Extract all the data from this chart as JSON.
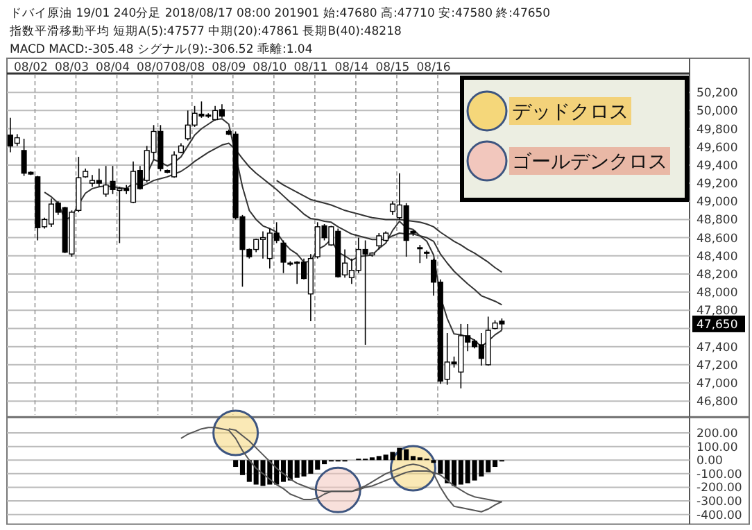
{
  "chart_data": [
    {
      "type": "candlestick",
      "title": "ドバイ原油 19/01 240分足 2018/08/17 08:00 201901 始:47680 高:47710 安:47580 終:47650",
      "subtitle": "指数平滑移動平均 短期A(5):47577 中期(20):47861 長期B(40):48218",
      "categories": [
        null,
        null,
        null,
        "08/02",
        null,
        null,
        null,
        null,
        null,
        "08/03",
        null,
        null,
        null,
        null,
        null,
        "08/04",
        null,
        null,
        null,
        null,
        null,
        "08/07",
        null,
        null,
        null,
        null,
        "08/08",
        null,
        null,
        null,
        null,
        null,
        "08/09",
        null,
        null,
        null,
        null,
        null,
        "08/10",
        null,
        null,
        null,
        null,
        null,
        "08/11",
        null,
        null,
        null,
        null,
        null,
        "08/14",
        null,
        null,
        null,
        null,
        null,
        "08/15",
        null,
        null,
        null,
        null,
        null,
        "08/16",
        null,
        null,
        null,
        null,
        null,
        null,
        null,
        null,
        null,
        null,
        null,
        null,
        null,
        null,
        null,
        null,
        null,
        null,
        null,
        null,
        null,
        null,
        null,
        null,
        null,
        null,
        null,
        null,
        null,
        null,
        null,
        null,
        null,
        null,
        null,
        null,
        null
      ],
      "ohlc": [
        [
          49730,
          49920,
          49540,
          49610
        ],
        [
          49640,
          49740,
          49610,
          49700
        ],
        [
          49560,
          49690,
          49280,
          49310
        ],
        [
          49320,
          49330,
          49290,
          49300
        ],
        [
          49270,
          49280,
          48570,
          48710
        ],
        [
          48720,
          48820,
          48700,
          48800
        ],
        [
          48750,
          49030,
          48720,
          48970
        ],
        [
          48980,
          49000,
          48850,
          48880
        ],
        [
          48930,
          48940,
          48430,
          48440
        ],
        [
          48420,
          48900,
          48390,
          48880
        ],
        [
          48900,
          49490,
          48880,
          49260
        ],
        [
          49270,
          49360,
          49260,
          49330
        ],
        [
          49200,
          49290,
          49160,
          49230
        ],
        [
          49230,
          49360,
          49160,
          49200
        ],
        [
          49080,
          49390,
          49050,
          49180
        ],
        [
          49220,
          49390,
          49080,
          49130
        ],
        [
          49120,
          49160,
          48540,
          49140
        ],
        [
          49140,
          49180,
          49080,
          49120
        ],
        [
          48990,
          49440,
          48980,
          49330
        ],
        [
          49340,
          49390,
          49130,
          49140
        ],
        [
          49230,
          49610,
          49210,
          49560
        ],
        [
          49540,
          49840,
          49460,
          49770
        ],
        [
          49770,
          49840,
          49330,
          49360
        ],
        [
          49340,
          49350,
          49310,
          49320
        ],
        [
          49270,
          49550,
          49260,
          49510
        ],
        [
          49540,
          49640,
          49530,
          49610
        ],
        [
          49690,
          50000,
          49670,
          49840
        ],
        [
          49840,
          50050,
          49820,
          49970
        ],
        [
          49960,
          50100,
          49920,
          49940
        ],
        [
          49950,
          49970,
          49920,
          49940
        ],
        [
          49900,
          50050,
          49890,
          50000
        ],
        [
          50010,
          50070,
          49920,
          49940
        ],
        [
          49770,
          49790,
          49730,
          49740
        ],
        [
          49740,
          49770,
          48800,
          48820
        ],
        [
          48830,
          48850,
          48060,
          48470
        ],
        [
          48470,
          48480,
          48370,
          48390
        ],
        [
          48470,
          48590,
          48440,
          48580
        ],
        [
          48580,
          48670,
          48370,
          48600
        ],
        [
          48370,
          48700,
          48260,
          48650
        ],
        [
          48650,
          48770,
          48540,
          48570
        ],
        [
          48540,
          48570,
          48210,
          48330
        ],
        [
          48320,
          48340,
          48290,
          48310
        ],
        [
          48330,
          48340,
          48090,
          48320
        ],
        [
          48330,
          48370,
          48140,
          48150
        ],
        [
          47980,
          48420,
          47680,
          48370
        ],
        [
          48390,
          48770,
          48370,
          48720
        ],
        [
          48730,
          48750,
          48570,
          48600
        ],
        [
          48520,
          48730,
          48510,
          48720
        ],
        [
          48670,
          48700,
          48160,
          48170
        ],
        [
          48190,
          48470,
          48160,
          48320
        ],
        [
          48160,
          48370,
          48090,
          48240
        ],
        [
          48240,
          48600,
          48210,
          48470
        ],
        [
          48470,
          48570,
          47420,
          48420
        ],
        [
          48410,
          48440,
          48390,
          48430
        ],
        [
          48510,
          48650,
          48470,
          48620
        ],
        [
          48570,
          48670,
          48560,
          48650
        ],
        [
          48890,
          49000,
          48850,
          48970
        ],
        [
          48820,
          49310,
          48800,
          48960
        ],
        [
          48950,
          48980,
          48390,
          48570
        ],
        [
          48670,
          48680,
          48620,
          48650
        ],
        [
          48490,
          48520,
          48320,
          48480
        ],
        [
          48440,
          48460,
          48370,
          48430
        ],
        [
          48350,
          48370,
          47960,
          48110
        ],
        [
          48110,
          48140,
          46990,
          47020
        ],
        [
          47040,
          47550,
          46980,
          47230
        ],
        [
          47230,
          47290,
          47170,
          47210
        ],
        [
          47120,
          47650,
          46940,
          47520
        ],
        [
          47520,
          47650,
          47350,
          47450
        ],
        [
          47460,
          47480,
          47380,
          47400
        ],
        [
          47420,
          47550,
          47190,
          47270
        ],
        [
          47200,
          47730,
          47190,
          47580
        ],
        [
          47600,
          47690,
          47590,
          47660
        ],
        [
          47680,
          47710,
          47580,
          47650
        ],
        null,
        null,
        null,
        null,
        null,
        null,
        null,
        null,
        null,
        null,
        null,
        null,
        null,
        null,
        null,
        null,
        null,
        null,
        null,
        null,
        null,
        null,
        null,
        null,
        null,
        null,
        null
      ],
      "series": [
        {
          "type": "line",
          "color": "#333333",
          "values": [
            null,
            null,
            null,
            null,
            null,
            49100,
            49050,
            48980,
            48800,
            48830,
            48970,
            49090,
            49140,
            49160,
            49170,
            49160,
            49150,
            49140,
            49200,
            49180,
            49300,
            49460,
            49430,
            49390,
            49430,
            49490,
            49610,
            49730,
            49800,
            49850,
            49900,
            49910,
            49850,
            49510,
            49160,
            48900,
            48800,
            48730,
            48700,
            48660,
            48550,
            48470,
            48420,
            48330,
            48340,
            48470,
            48510,
            48580,
            48440,
            48400,
            48350,
            48390,
            48400,
            48410,
            48480,
            48540,
            48680,
            48780,
            48710,
            48690,
            48620,
            48560,
            48410,
            47950,
            47710,
            47540,
            47530,
            47510,
            47470,
            47400,
            47460,
            47530,
            47580,
            null,
            null,
            null,
            null,
            null,
            null,
            null,
            null,
            null,
            null,
            null,
            null,
            null,
            null,
            null,
            null,
            null,
            null,
            null,
            null,
            null,
            null,
            null,
            null,
            null,
            null,
            null
          ]
        },
        {
          "type": "line",
          "color": "#333333",
          "values": [
            null,
            null,
            null,
            null,
            null,
            null,
            null,
            null,
            null,
            null,
            null,
            null,
            null,
            null,
            null,
            null,
            null,
            null,
            null,
            49160,
            49190,
            49230,
            49250,
            49270,
            49300,
            49330,
            49380,
            49440,
            49490,
            49540,
            49580,
            49620,
            49640,
            49570,
            49470,
            49380,
            49310,
            49250,
            49190,
            49130,
            49060,
            48990,
            48930,
            48860,
            48810,
            48800,
            48780,
            48770,
            48720,
            48680,
            48640,
            48620,
            48600,
            48580,
            48580,
            48580,
            48620,
            48650,
            48640,
            48640,
            48620,
            48600,
            48560,
            48420,
            48320,
            48230,
            48160,
            48090,
            48030,
            47960,
            47930,
            47900,
            47860,
            null,
            null,
            null,
            null,
            null,
            null,
            null,
            null,
            null,
            null,
            null,
            null,
            null,
            null,
            null,
            null,
            null,
            null,
            null,
            null,
            null,
            null,
            null,
            null,
            null,
            null,
            null
          ]
        },
        {
          "type": "line",
          "color": "#333333",
          "values": [
            null,
            null,
            null,
            null,
            null,
            null,
            null,
            null,
            null,
            null,
            null,
            null,
            null,
            null,
            null,
            null,
            null,
            null,
            null,
            null,
            null,
            null,
            null,
            null,
            null,
            null,
            null,
            null,
            null,
            null,
            null,
            null,
            null,
            null,
            null,
            null,
            null,
            null,
            null,
            49230,
            49180,
            49140,
            49100,
            49060,
            49020,
            49000,
            48980,
            48960,
            48930,
            48900,
            48880,
            48860,
            48840,
            48820,
            48810,
            48800,
            48800,
            48800,
            48790,
            48780,
            48770,
            48750,
            48720,
            48660,
            48610,
            48560,
            48520,
            48470,
            48430,
            48380,
            48330,
            48270,
            48220,
            null,
            null,
            null,
            null,
            null,
            null,
            null,
            null,
            null,
            null,
            null,
            null,
            null,
            null,
            null,
            null,
            null,
            null,
            null,
            null,
            null,
            null,
            null,
            null,
            null,
            null,
            null
          ]
        }
      ],
      "ylim": [
        46650,
        50400
      ],
      "yticks": [
        {
          "value": 46800,
          "label": "46,800"
        },
        {
          "value": 47000,
          "label": "47,000"
        },
        {
          "value": 47200,
          "label": "47,200"
        },
        {
          "value": 47400,
          "label": "47,400"
        },
        {
          "value": 47600,
          "label": null
        },
        {
          "value": 47800,
          "label": "47,800"
        },
        {
          "value": 48000,
          "label": "48,000"
        },
        {
          "value": 48200,
          "label": "48,200"
        },
        {
          "value": 48400,
          "label": "48,400"
        },
        {
          "value": 48600,
          "label": "48,600"
        },
        {
          "value": 48800,
          "label": "48,800"
        },
        {
          "value": 49000,
          "label": "49,000"
        },
        {
          "value": 49200,
          "label": "49,200"
        },
        {
          "value": 49400,
          "label": "49,400"
        },
        {
          "value": 49600,
          "label": "49,600"
        },
        {
          "value": 49800,
          "label": "49,800"
        },
        {
          "value": 50000,
          "label": "50,000"
        },
        {
          "value": 50200,
          "label": "50,200"
        }
      ],
      "grid": true,
      "annotations": [
        "47,650",
        "MACD MACD:-305.48 シグナル(9):-306.52 乖離:1.04"
      ]
    },
    {
      "type": "bar",
      "categories": [
        null,
        null,
        null,
        null,
        null,
        null,
        null,
        null,
        null,
        null,
        null,
        null,
        null,
        null,
        null,
        null,
        null,
        null,
        null,
        null,
        null,
        null,
        null,
        null,
        null,
        null,
        null,
        null,
        null,
        null,
        null,
        null,
        null,
        null,
        null,
        null,
        null,
        null,
        null,
        null,
        null,
        null,
        null,
        null,
        null,
        null,
        null,
        null,
        null,
        null,
        null,
        null,
        null,
        null,
        null,
        null,
        null,
        null,
        null,
        null,
        null,
        null,
        null,
        null,
        null,
        null,
        null,
        null,
        null,
        null,
        null,
        null,
        null,
        null,
        null,
        null,
        null,
        null,
        null,
        null,
        null,
        null,
        null,
        null,
        null,
        null,
        null,
        null,
        null,
        null,
        null,
        null,
        null,
        null,
        null,
        null,
        null,
        null,
        null,
        null
      ],
      "series": [
        {
          "type": "bar",
          "color": "#000000",
          "values": [
            null,
            null,
            null,
            null,
            null,
            null,
            null,
            null,
            null,
            null,
            null,
            null,
            null,
            null,
            null,
            null,
            null,
            null,
            null,
            null,
            null,
            null,
            null,
            null,
            null,
            null,
            null,
            null,
            null,
            null,
            null,
            null,
            null,
            -50,
            -110,
            -160,
            -180,
            -190,
            -180,
            -180,
            -160,
            -150,
            -130,
            -120,
            -100,
            -70,
            -30,
            -10,
            -10,
            -10,
            null,
            10,
            10,
            20,
            30,
            40,
            60,
            90,
            80,
            30,
            20,
            10,
            -20,
            -100,
            -170,
            -190,
            -180,
            -170,
            -150,
            -120,
            -90,
            -50,
            -10,
            null,
            null,
            null,
            null,
            null,
            null,
            null,
            null,
            null,
            null,
            null,
            null,
            null,
            null,
            null,
            null,
            null,
            null,
            null,
            null,
            null,
            null,
            null,
            null,
            null,
            null,
            null
          ]
        },
        {
          "type": "line",
          "color": "#555555",
          "values": [
            null,
            null,
            null,
            null,
            null,
            null,
            null,
            null,
            null,
            null,
            null,
            null,
            null,
            null,
            null,
            null,
            null,
            null,
            null,
            null,
            null,
            null,
            null,
            null,
            null,
            160,
            190,
            210,
            230,
            240,
            240,
            230,
            220,
            160,
            70,
            0,
            -60,
            -100,
            -140,
            -180,
            -210,
            -250,
            -270,
            -290,
            -290,
            -280,
            -250,
            -230,
            -230,
            -230,
            -230,
            -210,
            -190,
            -160,
            -130,
            -100,
            -80,
            -60,
            -40,
            -30,
            -40,
            -60,
            -100,
            -200,
            -280,
            -340,
            -350,
            -360,
            -370,
            -380,
            -360,
            -330,
            -305,
            null,
            null,
            null,
            null,
            null,
            null,
            null,
            null,
            null,
            null,
            null,
            null,
            null,
            null,
            null,
            null,
            null,
            null,
            null,
            null,
            null,
            null,
            null,
            null,
            null,
            null,
            null
          ]
        },
        {
          "type": "line",
          "color": "#555555",
          "values": [
            null,
            null,
            null,
            null,
            null,
            null,
            null,
            null,
            null,
            null,
            null,
            null,
            null,
            null,
            null,
            null,
            null,
            null,
            null,
            null,
            null,
            null,
            null,
            null,
            null,
            null,
            null,
            null,
            null,
            null,
            null,
            null,
            230,
            220,
            180,
            140,
            90,
            40,
            -10,
            -60,
            -100,
            -140,
            -170,
            -190,
            -210,
            -220,
            -230,
            -230,
            -230,
            -230,
            -230,
            -220,
            -200,
            -190,
            -170,
            -150,
            -130,
            -110,
            -90,
            -80,
            -80,
            -80,
            -90,
            -110,
            -150,
            -190,
            -220,
            -250,
            -270,
            -280,
            -290,
            -300,
            -307,
            null,
            null,
            null,
            null,
            null,
            null,
            null,
            null,
            null,
            null,
            null,
            null,
            null,
            null,
            null,
            null,
            null,
            null,
            null,
            null,
            null,
            null,
            null,
            null,
            null,
            null,
            null
          ]
        }
      ],
      "ylim": [
        -410,
        290
      ],
      "yticks": [
        {
          "value": -400,
          "label": "-400.00"
        },
        {
          "value": -300,
          "label": "-300.00"
        },
        {
          "value": -200,
          "label": "-200.00"
        },
        {
          "value": -100,
          "label": "-100.00"
        },
        {
          "value": 0,
          "label": "0.00"
        },
        {
          "value": 100,
          "label": "100.00"
        },
        {
          "value": 200,
          "label": "200.00"
        }
      ],
      "grid": true,
      "tick_labels": "y",
      "annotations": [
        "デッドクロス",
        "ゴールデンクロス"
      ]
    }
  ]
}
